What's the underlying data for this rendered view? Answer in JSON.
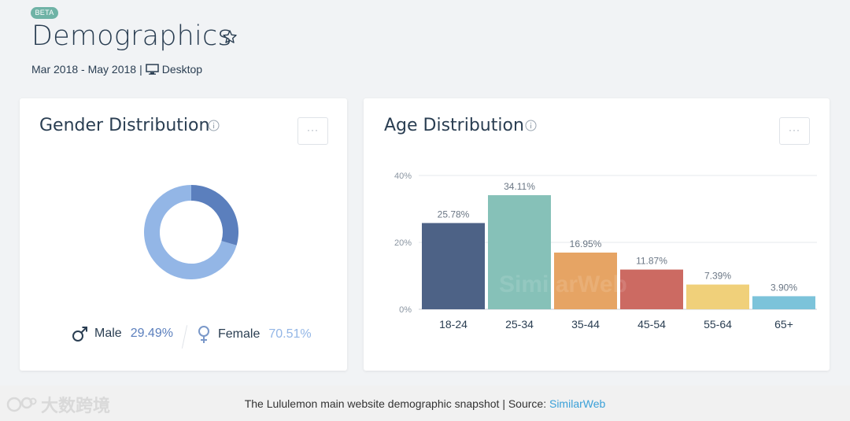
{
  "header": {
    "badge": "BETA",
    "title": "Demographics",
    "date_range": "Mar 2018 - May 2018",
    "separator": "|",
    "device": "Desktop"
  },
  "gender": {
    "title": "Gender Distribution",
    "more_label": "···",
    "male_label": "Male",
    "male_value": "29.49%",
    "female_label": "Female",
    "female_value": "70.51%",
    "colors": {
      "male": "#5b7fbd",
      "female": "#93b6e6"
    }
  },
  "age": {
    "title": "Age Distribution",
    "more_label": "···",
    "watermark": "SimilarWeb"
  },
  "chart_data": [
    {
      "type": "pie",
      "title": "Gender Distribution",
      "categories": [
        "Male",
        "Female"
      ],
      "values": [
        29.49,
        70.51
      ],
      "colors": [
        "#5b7fbd",
        "#93b6e6"
      ]
    },
    {
      "type": "bar",
      "title": "Age Distribution",
      "categories": [
        "18-24",
        "25-34",
        "35-44",
        "45-54",
        "55-64",
        "65+"
      ],
      "values": [
        25.78,
        34.11,
        16.95,
        11.87,
        7.39,
        3.9
      ],
      "labels": [
        "25.78%",
        "34.11%",
        "16.95%",
        "11.87%",
        "7.39%",
        "3.90%"
      ],
      "colors": [
        "#4d6286",
        "#86c1b8",
        "#e6a464",
        "#cc6a62",
        "#f0d07a",
        "#7cc3da"
      ],
      "yticks": [
        "0%",
        "20%",
        "40%"
      ],
      "ylim": [
        0,
        40
      ],
      "grid": true
    }
  ],
  "footer": {
    "caption": "The Lululemon main website demographic snapshot | Source: ",
    "source": "SimilarWeb",
    "watermark": "大数跨境"
  }
}
